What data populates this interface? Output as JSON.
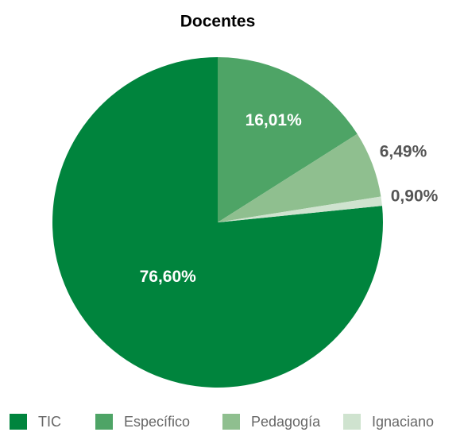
{
  "chart_data": {
    "type": "pie",
    "title": "Docentes",
    "categories": [
      "TIC",
      "Específico",
      "Pedagogía",
      "Ignaciano"
    ],
    "values": [
      76.6,
      16.01,
      6.49,
      0.9
    ],
    "value_labels": [
      "76,60%",
      "16,01%",
      "6,49%",
      "0,90%"
    ],
    "colors": [
      "#00843d",
      "#4ea466",
      "#8fbf8f",
      "#cfe3cf"
    ],
    "legend": "bottom"
  }
}
